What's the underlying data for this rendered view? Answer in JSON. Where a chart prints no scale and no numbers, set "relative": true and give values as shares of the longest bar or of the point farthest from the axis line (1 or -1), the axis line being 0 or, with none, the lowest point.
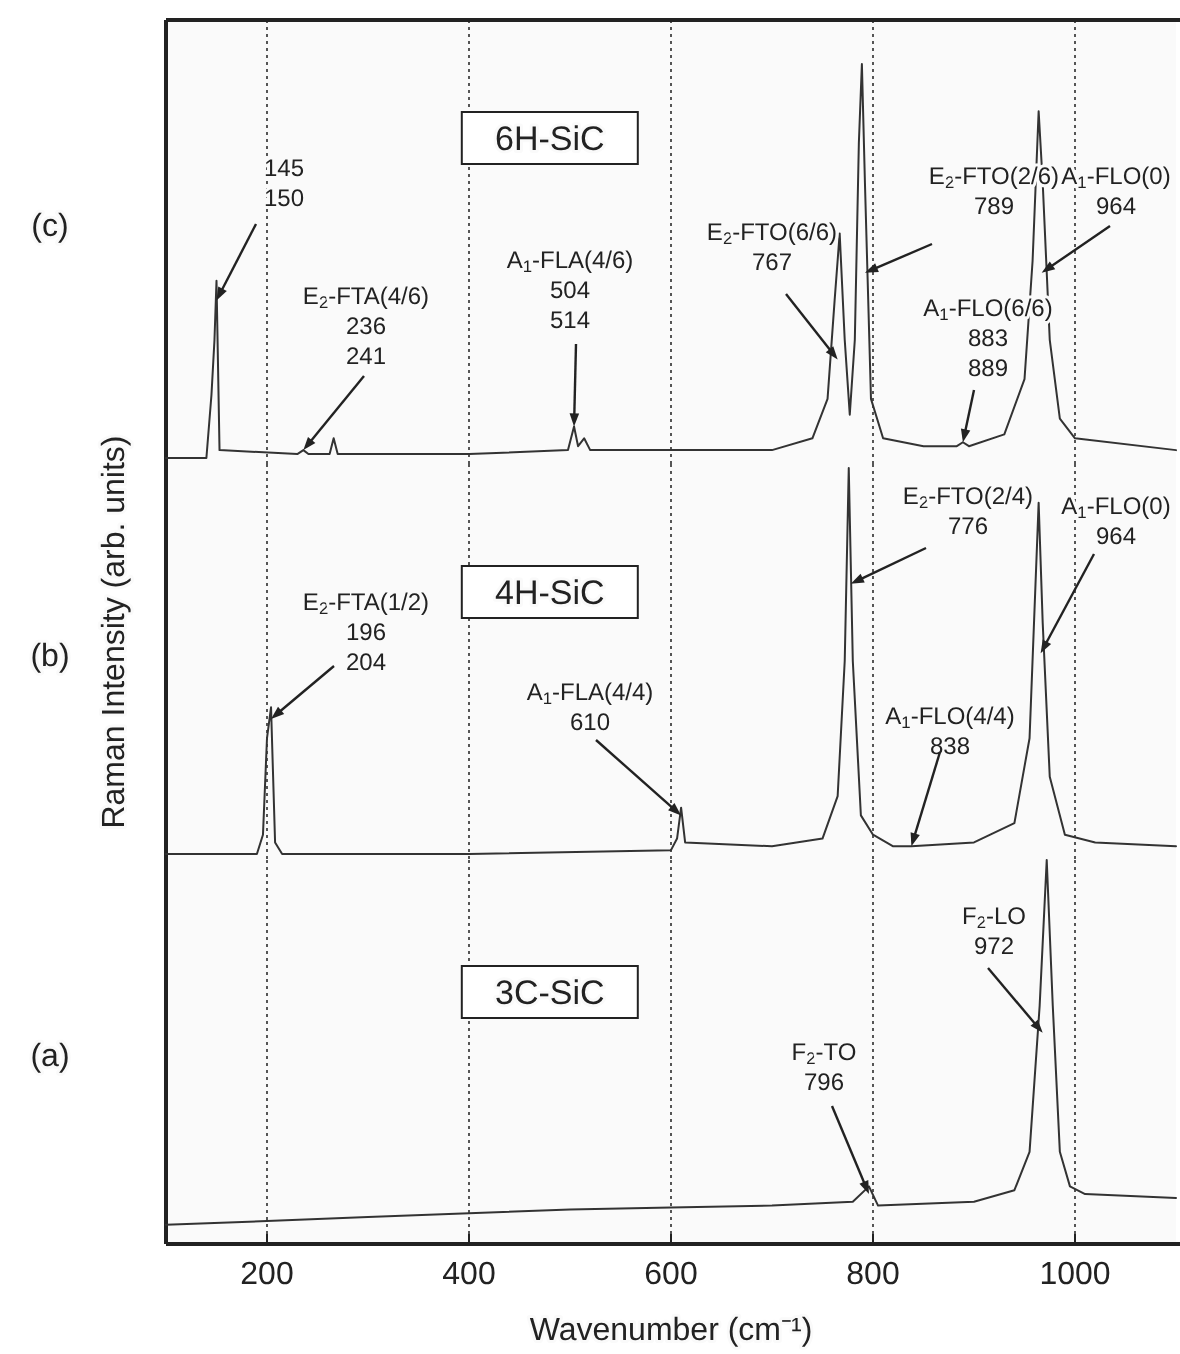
{
  "chart_data": [
    {
      "type": "line",
      "title": "(c)",
      "subtitle": "6H-SiC",
      "relative": true,
      "xlim": [
        100,
        1100
      ],
      "xticks": [
        200,
        400,
        600,
        800,
        1000
      ],
      "grid": "x",
      "tick_labels": false,
      "x": [
        100,
        140,
        145,
        148,
        150,
        153,
        230,
        236,
        241,
        262,
        266,
        270,
        400,
        498,
        504,
        508,
        514,
        520,
        700,
        740,
        755,
        762,
        767,
        772,
        777,
        782,
        786,
        789,
        792,
        798,
        810,
        850,
        883,
        889,
        895,
        930,
        950,
        958,
        964,
        968,
        975,
        985,
        1000,
        1100
      ],
      "series": [
        {
          "color": "#333333",
          "values": [
            0.0,
            0.0,
            0.16,
            0.3,
            0.45,
            0.02,
            0.01,
            0.02,
            0.01,
            0.01,
            0.05,
            0.01,
            0.01,
            0.02,
            0.08,
            0.03,
            0.05,
            0.02,
            0.02,
            0.05,
            0.15,
            0.4,
            0.57,
            0.3,
            0.11,
            0.3,
            0.8,
            1,
            0.7,
            0.15,
            0.05,
            0.03,
            0.03,
            0.04,
            0.03,
            0.06,
            0.2,
            0.5,
            0.88,
            0.7,
            0.3,
            0.1,
            0.05,
            0.02
          ]
        }
      ],
      "annotations": [
        {
          "text": "145\n150",
          "x": 150,
          "y": 0.4
        },
        {
          "text": "E$_{2}$-FTA(4/6)\n236\n241",
          "x": 236,
          "y": 0.02
        },
        {
          "text": "A$_{1}$-FLA(4/6)\n504\n514",
          "x": 504,
          "y": 0.08
        },
        {
          "text": "E$_{2}$-FTO(6/6)\n767",
          "x": 765,
          "y": 0.25
        },
        {
          "text": "E$_{2}$-FTO(2/6)\n789",
          "x": 792,
          "y": 0.47
        },
        {
          "text": "A$_{1}$-FLO(6/6)\n883\n889",
          "x": 889,
          "y": 0.04
        },
        {
          "text": "A$_{1}$-FLO(0)\n964",
          "x": 967,
          "y": 0.47
        }
      ]
    },
    {
      "type": "line",
      "title": "(b)",
      "subtitle": "4H-SiC",
      "ylabel": "Raman Intensity (arb. units)",
      "relative": true,
      "xlim": [
        100,
        1100
      ],
      "xticks": [
        200,
        400,
        600,
        800,
        1000
      ],
      "grid": "x",
      "tick_labels": false,
      "x": [
        100,
        190,
        196,
        200,
        204,
        208,
        215,
        400,
        600,
        606,
        610,
        614,
        700,
        750,
        765,
        772,
        776,
        780,
        788,
        800,
        820,
        838,
        900,
        940,
        955,
        964,
        968,
        975,
        990,
        1020,
        1100
      ],
      "series": [
        {
          "color": "#333333",
          "values": [
            0.0,
            0.0,
            0.05,
            0.3,
            0.38,
            0.03,
            0.0,
            0.0,
            0.01,
            0.04,
            0.12,
            0.03,
            0.02,
            0.04,
            0.15,
            0.5,
            1,
            0.5,
            0.1,
            0.05,
            0.02,
            0.02,
            0.03,
            0.08,
            0.3,
            0.91,
            0.6,
            0.2,
            0.05,
            0.03,
            0.02
          ]
        }
      ],
      "annotations": [
        {
          "text": "E$_{2}$-FTA(1/2)\n196\n204",
          "x": 204,
          "y": 0.35
        },
        {
          "text": "A$_{1}$-FLA(4/4)\n610",
          "x": 610,
          "y": 0.1
        },
        {
          "text": "E$_{2}$-FTO(2/4)\n776",
          "x": 778,
          "y": 0.7
        },
        {
          "text": "A$_{1}$-FLO(4/4)\n838",
          "x": 838,
          "y": 0.02
        },
        {
          "text": "A$_{1}$-FLO(0)\n964",
          "x": 966,
          "y": 0.52
        }
      ]
    },
    {
      "type": "line",
      "title": "(a)",
      "subtitle": "3C-SiC",
      "xlabel": "Wavenumber (cm⁻¹)",
      "relative": true,
      "xlim": [
        100,
        1100
      ],
      "xticks": [
        200,
        400,
        600,
        800,
        1000
      ],
      "grid": "x",
      "tick_labels": "x",
      "x": [
        100,
        200,
        300,
        400,
        500,
        600,
        700,
        780,
        796,
        805,
        900,
        940,
        955,
        965,
        972,
        978,
        985,
        995,
        1010,
        1100
      ],
      "series": [
        {
          "color": "#333333",
          "values": [
            0.05,
            0.06,
            0.07,
            0.08,
            0.09,
            0.095,
            0.1,
            0.11,
            0.15,
            0.1,
            0.11,
            0.14,
            0.24,
            0.62,
            1,
            0.62,
            0.24,
            0.15,
            0.13,
            0.12
          ]
        }
      ],
      "annotations": [
        {
          "text": "F$_{2}$-TO\n796",
          "x": 796,
          "y": 0.13
        },
        {
          "text": "F$_{2}$-LO\n972",
          "x": 968,
          "y": 0.55
        }
      ]
    }
  ]
}
